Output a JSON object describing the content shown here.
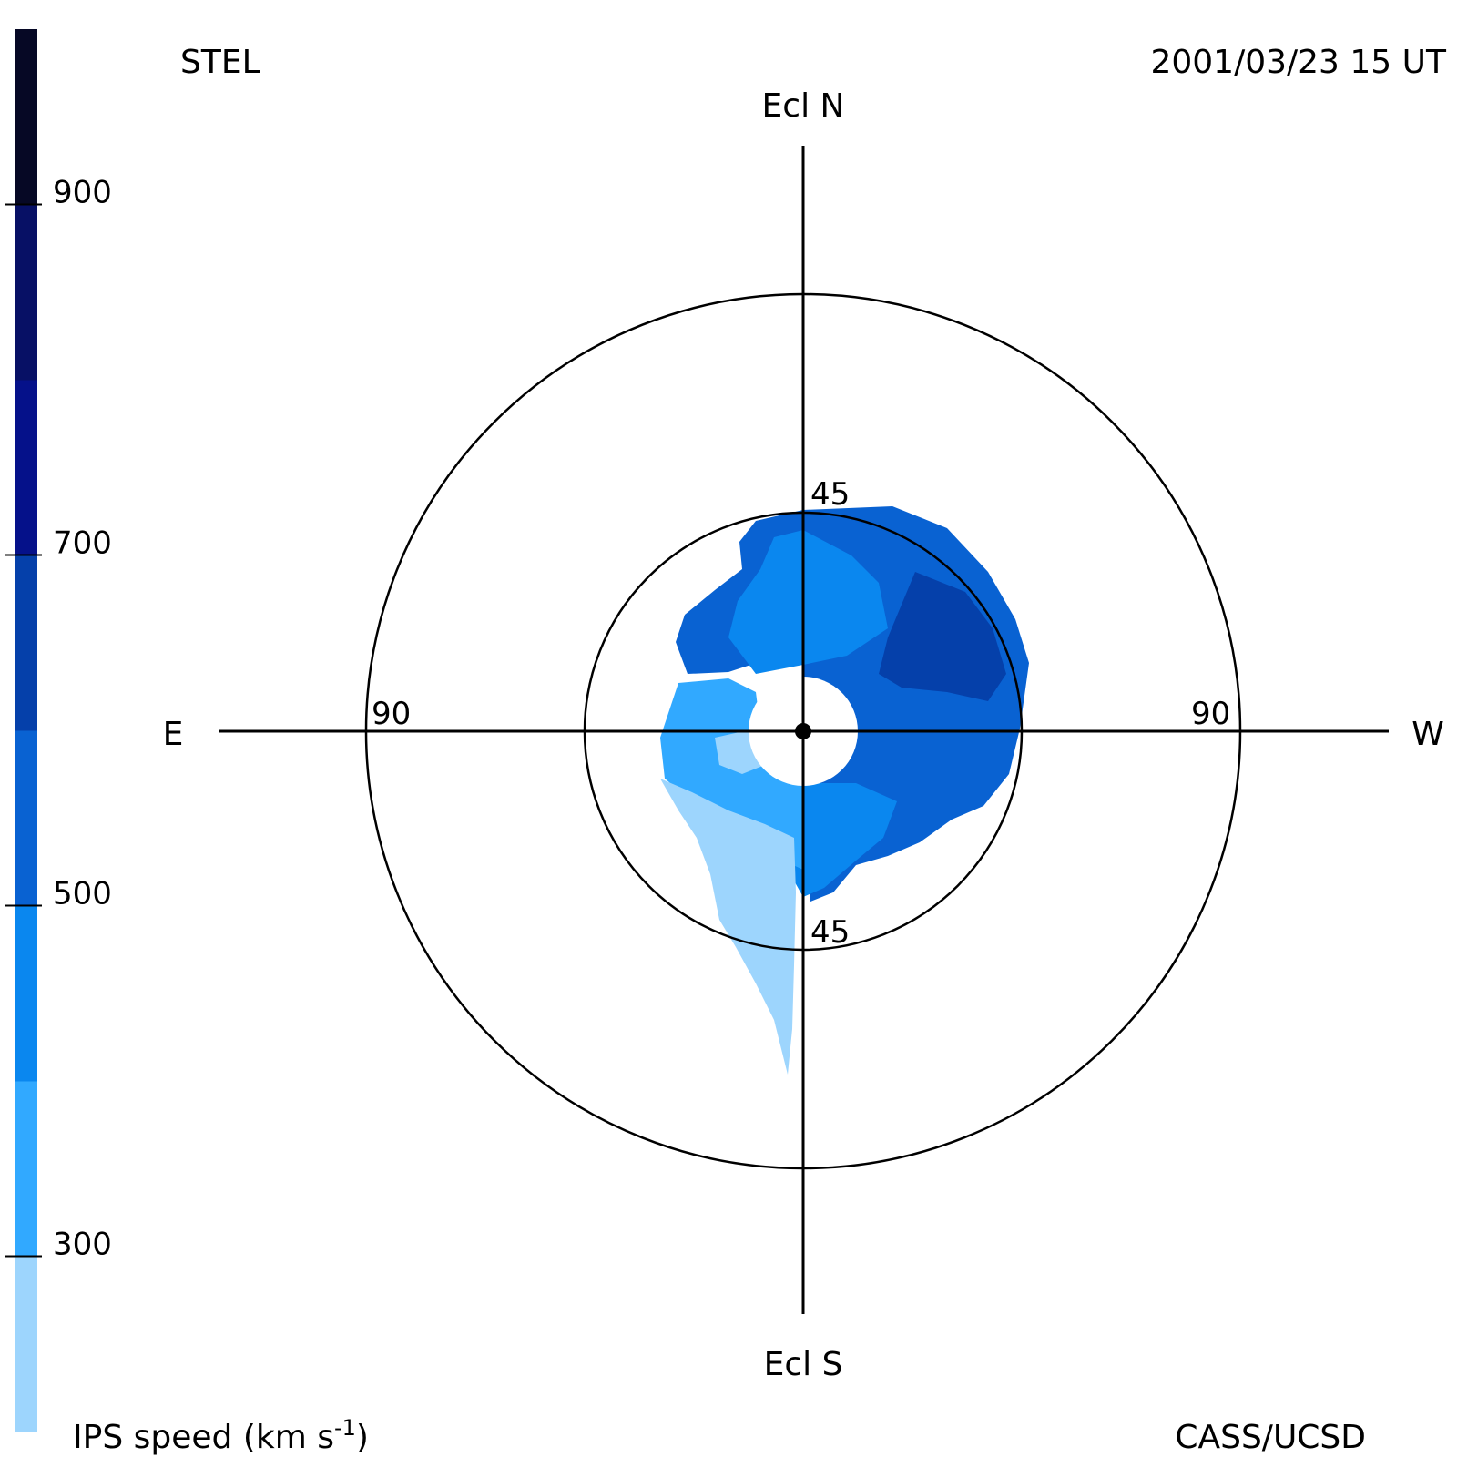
{
  "header": {
    "instrument": "STEL",
    "timestamp": "2001/03/23 15 UT"
  },
  "footer": {
    "colorbar_title": "IPS speed (km s",
    "colorbar_title_exp": "-1",
    "colorbar_title_end": ")",
    "credit": "CASS/UCSD"
  },
  "chart_data": {
    "type": "heatmap",
    "projection": "polar sky map centered on Sun",
    "directions": {
      "top": "Ecl N",
      "bottom": "Ecl S",
      "left": "E",
      "right": "W"
    },
    "rings": [
      {
        "elongation_deg": 45,
        "labels": [
          "45",
          "45"
        ]
      },
      {
        "elongation_deg": 90,
        "labels": [
          "90",
          "90"
        ]
      }
    ],
    "colorbar": {
      "range": [
        200,
        1000
      ],
      "tick_values": [
        300,
        500,
        700,
        900
      ],
      "tick_labels": [
        "300",
        "500",
        "700",
        "900"
      ],
      "bins": [
        {
          "from": 200,
          "to": 300,
          "color": "#9dd5fd"
        },
        {
          "from": 300,
          "to": 400,
          "color": "#31a9ff"
        },
        {
          "from": 400,
          "to": 500,
          "color": "#0a87ef"
        },
        {
          "from": 500,
          "to": 600,
          "color": "#0962d2"
        },
        {
          "from": 600,
          "to": 700,
          "color": "#0540aa"
        },
        {
          "from": 700,
          "to": 800,
          "color": "#05118a"
        },
        {
          "from": 800,
          "to": 900,
          "color": "#071065"
        },
        {
          "from": 900,
          "to": 1000,
          "color": "#060825"
        }
      ]
    },
    "regions": [
      {
        "speed_bin": "500-600",
        "area": "north-east quadrant and west outer zone"
      },
      {
        "speed_bin": "400-500",
        "area": "central band near Sun, north-central, south-west"
      },
      {
        "speed_bin": "600-700",
        "area": "west-north-west"
      },
      {
        "speed_bin": "300-400",
        "area": "east, just south of ecliptic"
      },
      {
        "speed_bin": "200-300",
        "area": "south-east tail extending toward Ecl S"
      }
    ]
  }
}
